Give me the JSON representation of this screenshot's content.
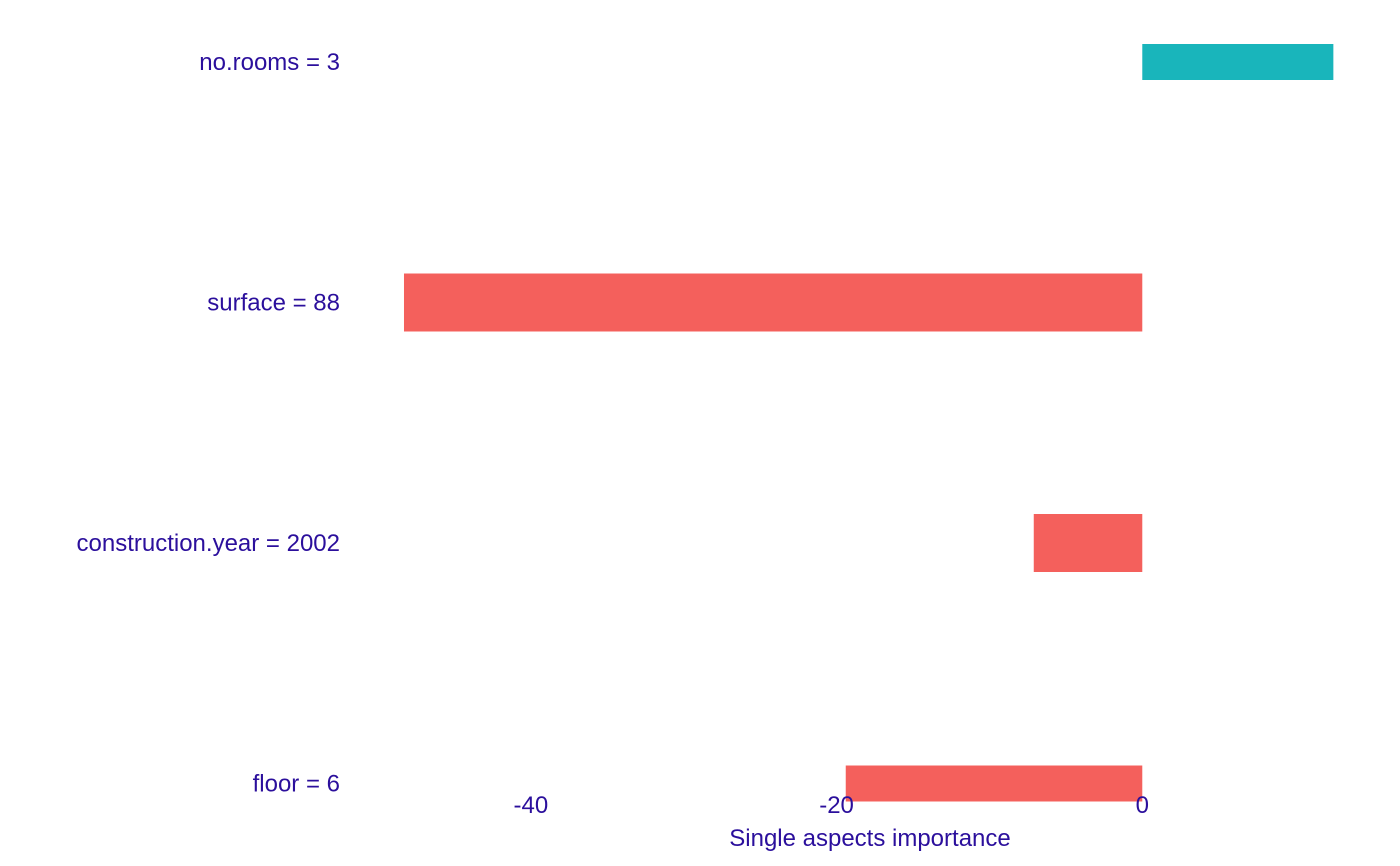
{
  "chart_data": {
    "type": "bar",
    "orientation": "horizontal",
    "categories": [
      "no.rooms = 3",
      "surface = 88",
      "construction.year = 2002",
      "floor = 6"
    ],
    "values": [
      12.5,
      -48.3,
      -7.1,
      -19.4
    ],
    "xlabel": "Single aspects importance",
    "ylabel": "",
    "xlim": [
      -50,
      13
    ],
    "xticks": [
      -40,
      -20,
      0
    ],
    "xtick_labels": [
      "-40",
      "-20",
      "0"
    ],
    "grid": false,
    "legend": "none",
    "colors": {
      "positive": "#19b5bb",
      "negative": "#f4605c",
      "text": "#2b0f9c",
      "background": "#ffffff"
    }
  }
}
